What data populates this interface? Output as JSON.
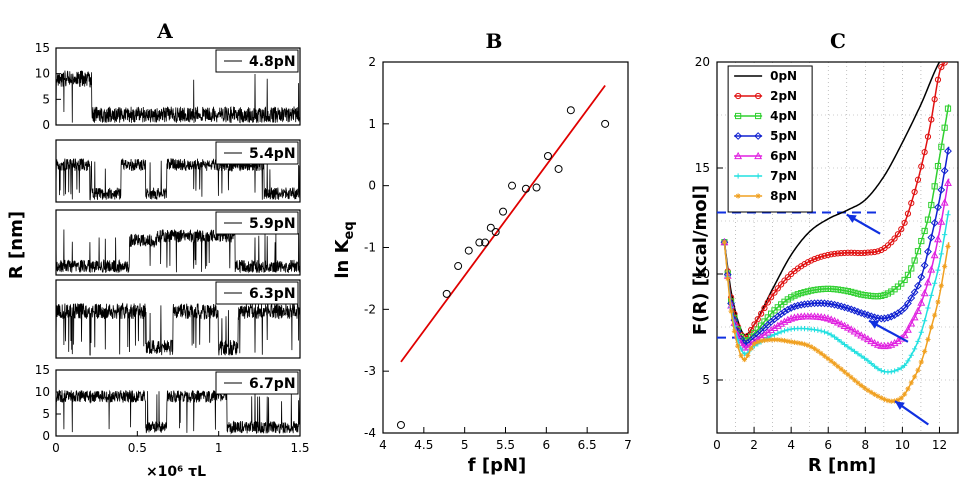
{
  "chart_data": [
    {
      "id": "A",
      "type": "line",
      "title": "A",
      "ylabel": "R [nm]",
      "xlabel": "×10⁶ τL",
      "xlim": [
        0,
        1.5
      ],
      "xticks": [
        "0",
        "0.5",
        "1",
        "1.5"
      ],
      "ylim": [
        0,
        15
      ],
      "yticks": [
        "0",
        "5",
        "10",
        "15"
      ],
      "panels": [
        {
          "force": "4.8pN",
          "states": [
            [
              0,
              0.22,
              9
            ],
            [
              0.22,
              1.5,
              2
            ]
          ],
          "noise": 1.6,
          "flips": 0.004,
          "seed": 11
        },
        {
          "force": "5.4pN",
          "states": [
            [
              0,
              0.22,
              9
            ],
            [
              0.22,
              0.4,
              2
            ],
            [
              0.4,
              0.55,
              9
            ],
            [
              0.55,
              0.68,
              2
            ],
            [
              0.68,
              0.85,
              9
            ],
            [
              0.85,
              1.28,
              9
            ],
            [
              1.28,
              1.5,
              2
            ]
          ],
          "noise": 1.5,
          "flips": 0.03,
          "seed": 22
        },
        {
          "force": "5.9pN",
          "states": [
            [
              0,
              0.45,
              2
            ],
            [
              0.45,
              0.62,
              8
            ],
            [
              0.62,
              1.1,
              9
            ],
            [
              1.1,
              1.5,
              2
            ]
          ],
          "noise": 1.5,
          "flips": 0.03,
          "seed": 33
        },
        {
          "force": "6.3pN",
          "states": [
            [
              0,
              0.35,
              9
            ],
            [
              0.35,
              0.55,
              9
            ],
            [
              0.55,
              0.72,
              2
            ],
            [
              0.72,
              1.0,
              9
            ],
            [
              1.0,
              1.12,
              2
            ],
            [
              1.12,
              1.5,
              9
            ]
          ],
          "noise": 1.5,
          "flips": 0.04,
          "seed": 44
        },
        {
          "force": "6.7pN",
          "states": [
            [
              0,
              0.55,
              9
            ],
            [
              0.55,
              0.68,
              2
            ],
            [
              0.68,
              1.05,
              9
            ],
            [
              1.05,
              1.5,
              2
            ]
          ],
          "noise": 1.4,
          "flips": 0.02,
          "seed": 55
        }
      ]
    },
    {
      "id": "B",
      "type": "scatter",
      "title": "B",
      "xlabel": "f [pN]",
      "ylabel": "ln K",
      "ylabel_sub": "eq",
      "xlim": [
        4,
        7
      ],
      "ylim": [
        -4,
        2
      ],
      "xticks": [
        "4",
        "4.5",
        "5",
        "5.5",
        "6",
        "6.5",
        "7"
      ],
      "yticks": [
        "-4",
        "-3",
        "-2",
        "-1",
        "0",
        "1",
        "2"
      ],
      "points": [
        [
          4.22,
          -3.87
        ],
        [
          4.78,
          -1.75
        ],
        [
          4.92,
          -1.3
        ],
        [
          5.05,
          -1.05
        ],
        [
          5.18,
          -0.92
        ],
        [
          5.25,
          -0.92
        ],
        [
          5.32,
          -0.68
        ],
        [
          5.38,
          -0.75
        ],
        [
          5.47,
          -0.42
        ],
        [
          5.58,
          0.0
        ],
        [
          5.75,
          -0.05
        ],
        [
          5.88,
          -0.03
        ],
        [
          6.02,
          0.48
        ],
        [
          6.15,
          0.27
        ],
        [
          6.3,
          1.22
        ],
        [
          6.72,
          1.0
        ]
      ],
      "fit": [
        [
          4.22,
          -2.85
        ],
        [
          6.72,
          1.62
        ]
      ],
      "fit_color": "#e00000"
    },
    {
      "id": "C",
      "type": "line",
      "title": "C",
      "xlabel": "R [nm]",
      "ylabel": "F(R) [kcal/mol]",
      "xlim": [
        0,
        13
      ],
      "ylim": [
        2.5,
        20
      ],
      "xticks": [
        "0",
        "2",
        "4",
        "6",
        "8",
        "10",
        "12"
      ],
      "yticks": [
        "5",
        "10",
        "15",
        "20"
      ],
      "dashed_levels": [
        12.9,
        7.0
      ],
      "dashed_color": "#1030e0",
      "series": [
        {
          "name": "0pN",
          "color": "#000000",
          "marker": "none",
          "x": [
            0.4,
            0.8,
            1.4,
            2.0,
            3.0,
            4.0,
            5.0,
            6.0,
            7.0,
            8.0,
            9.0,
            10.0,
            11.0,
            12.0,
            12.3
          ],
          "y": [
            11.5,
            9.0,
            7.2,
            7.6,
            9.3,
            10.9,
            12.0,
            12.6,
            13.0,
            13.5,
            14.6,
            16.2,
            18.0,
            20.0,
            20.0
          ]
        },
        {
          "name": "2pN",
          "color": "#e01010",
          "marker": "circle",
          "x": [
            0.4,
            0.8,
            1.4,
            2.0,
            3.0,
            4.0,
            5.0,
            6.0,
            7.0,
            8.0,
            9.0,
            10.0,
            10.5,
            11.0,
            11.5,
            12.0,
            12.3
          ],
          "y": [
            11.5,
            8.7,
            7.0,
            7.6,
            9.0,
            10.0,
            10.6,
            10.9,
            11.0,
            11.0,
            11.2,
            12.2,
            13.4,
            15.0,
            17.0,
            19.5,
            20.0
          ]
        },
        {
          "name": "4pN",
          "color": "#30d030",
          "marker": "square",
          "x": [
            0.4,
            0.8,
            1.4,
            2.0,
            3.0,
            4.0,
            5.0,
            6.0,
            7.0,
            8.0,
            9.0,
            10.0,
            10.5,
            11.0,
            11.5,
            12.0,
            12.5
          ],
          "y": [
            11.5,
            8.5,
            6.9,
            7.2,
            8.2,
            8.9,
            9.2,
            9.3,
            9.2,
            9.0,
            9.0,
            9.6,
            10.3,
            11.5,
            13.0,
            15.5,
            18.0
          ]
        },
        {
          "name": "5pN",
          "color": "#1020d0",
          "marker": "diamond",
          "x": [
            0.4,
            0.8,
            1.4,
            2.0,
            3.0,
            4.0,
            5.0,
            6.0,
            7.0,
            8.0,
            9.0,
            10.0,
            10.5,
            11.0,
            11.5,
            12.0,
            12.5
          ],
          "y": [
            11.5,
            8.4,
            6.8,
            7.0,
            7.8,
            8.4,
            8.6,
            8.6,
            8.4,
            8.1,
            7.9,
            8.3,
            8.9,
            9.8,
            11.5,
            13.5,
            16.0
          ]
        },
        {
          "name": "6pN",
          "color": "#e020e0",
          "marker": "triangle",
          "x": [
            0.4,
            0.8,
            1.4,
            2.0,
            3.0,
            4.0,
            5.0,
            6.0,
            7.0,
            8.0,
            9.0,
            10.0,
            10.5,
            11.0,
            11.5,
            12.0,
            12.5
          ],
          "y": [
            11.5,
            8.3,
            6.6,
            6.8,
            7.4,
            7.9,
            8.0,
            7.9,
            7.5,
            7.0,
            6.6,
            7.0,
            7.7,
            8.6,
            10.0,
            12.0,
            14.5
          ]
        },
        {
          "name": "7pN",
          "color": "#20e0e0",
          "marker": "plus",
          "x": [
            0.4,
            0.8,
            1.4,
            2.0,
            3.0,
            4.0,
            5.0,
            6.0,
            7.0,
            8.0,
            9.0,
            10.0,
            10.5,
            11.0,
            11.5,
            12.0,
            12.5
          ],
          "y": [
            11.5,
            8.2,
            6.3,
            6.6,
            7.1,
            7.4,
            7.4,
            7.2,
            6.6,
            6.0,
            5.4,
            5.6,
            6.2,
            7.2,
            8.8,
            10.5,
            13.0
          ]
        },
        {
          "name": "8pN",
          "color": "#f0a020",
          "marker": "star",
          "x": [
            0.4,
            0.8,
            1.4,
            2.0,
            3.0,
            4.0,
            5.0,
            6.0,
            7.0,
            8.0,
            9.0,
            9.5,
            10.0,
            10.5,
            11.0,
            11.5,
            12.0,
            12.5
          ],
          "y": [
            11.5,
            8.0,
            6.0,
            6.7,
            6.9,
            6.8,
            6.6,
            6.0,
            5.3,
            4.6,
            4.1,
            4.0,
            4.2,
            4.9,
            5.8,
            7.3,
            9.0,
            11.5
          ]
        }
      ],
      "arrows": [
        {
          "from": [
            8.8,
            11.9
          ],
          "to": [
            7.0,
            12.8
          ]
        },
        {
          "from": [
            10.3,
            6.8
          ],
          "to": [
            8.2,
            7.8
          ]
        },
        {
          "from": [
            11.4,
            2.9
          ],
          "to": [
            9.6,
            4.0
          ]
        }
      ],
      "arrow_color": "#1030e0"
    }
  ]
}
